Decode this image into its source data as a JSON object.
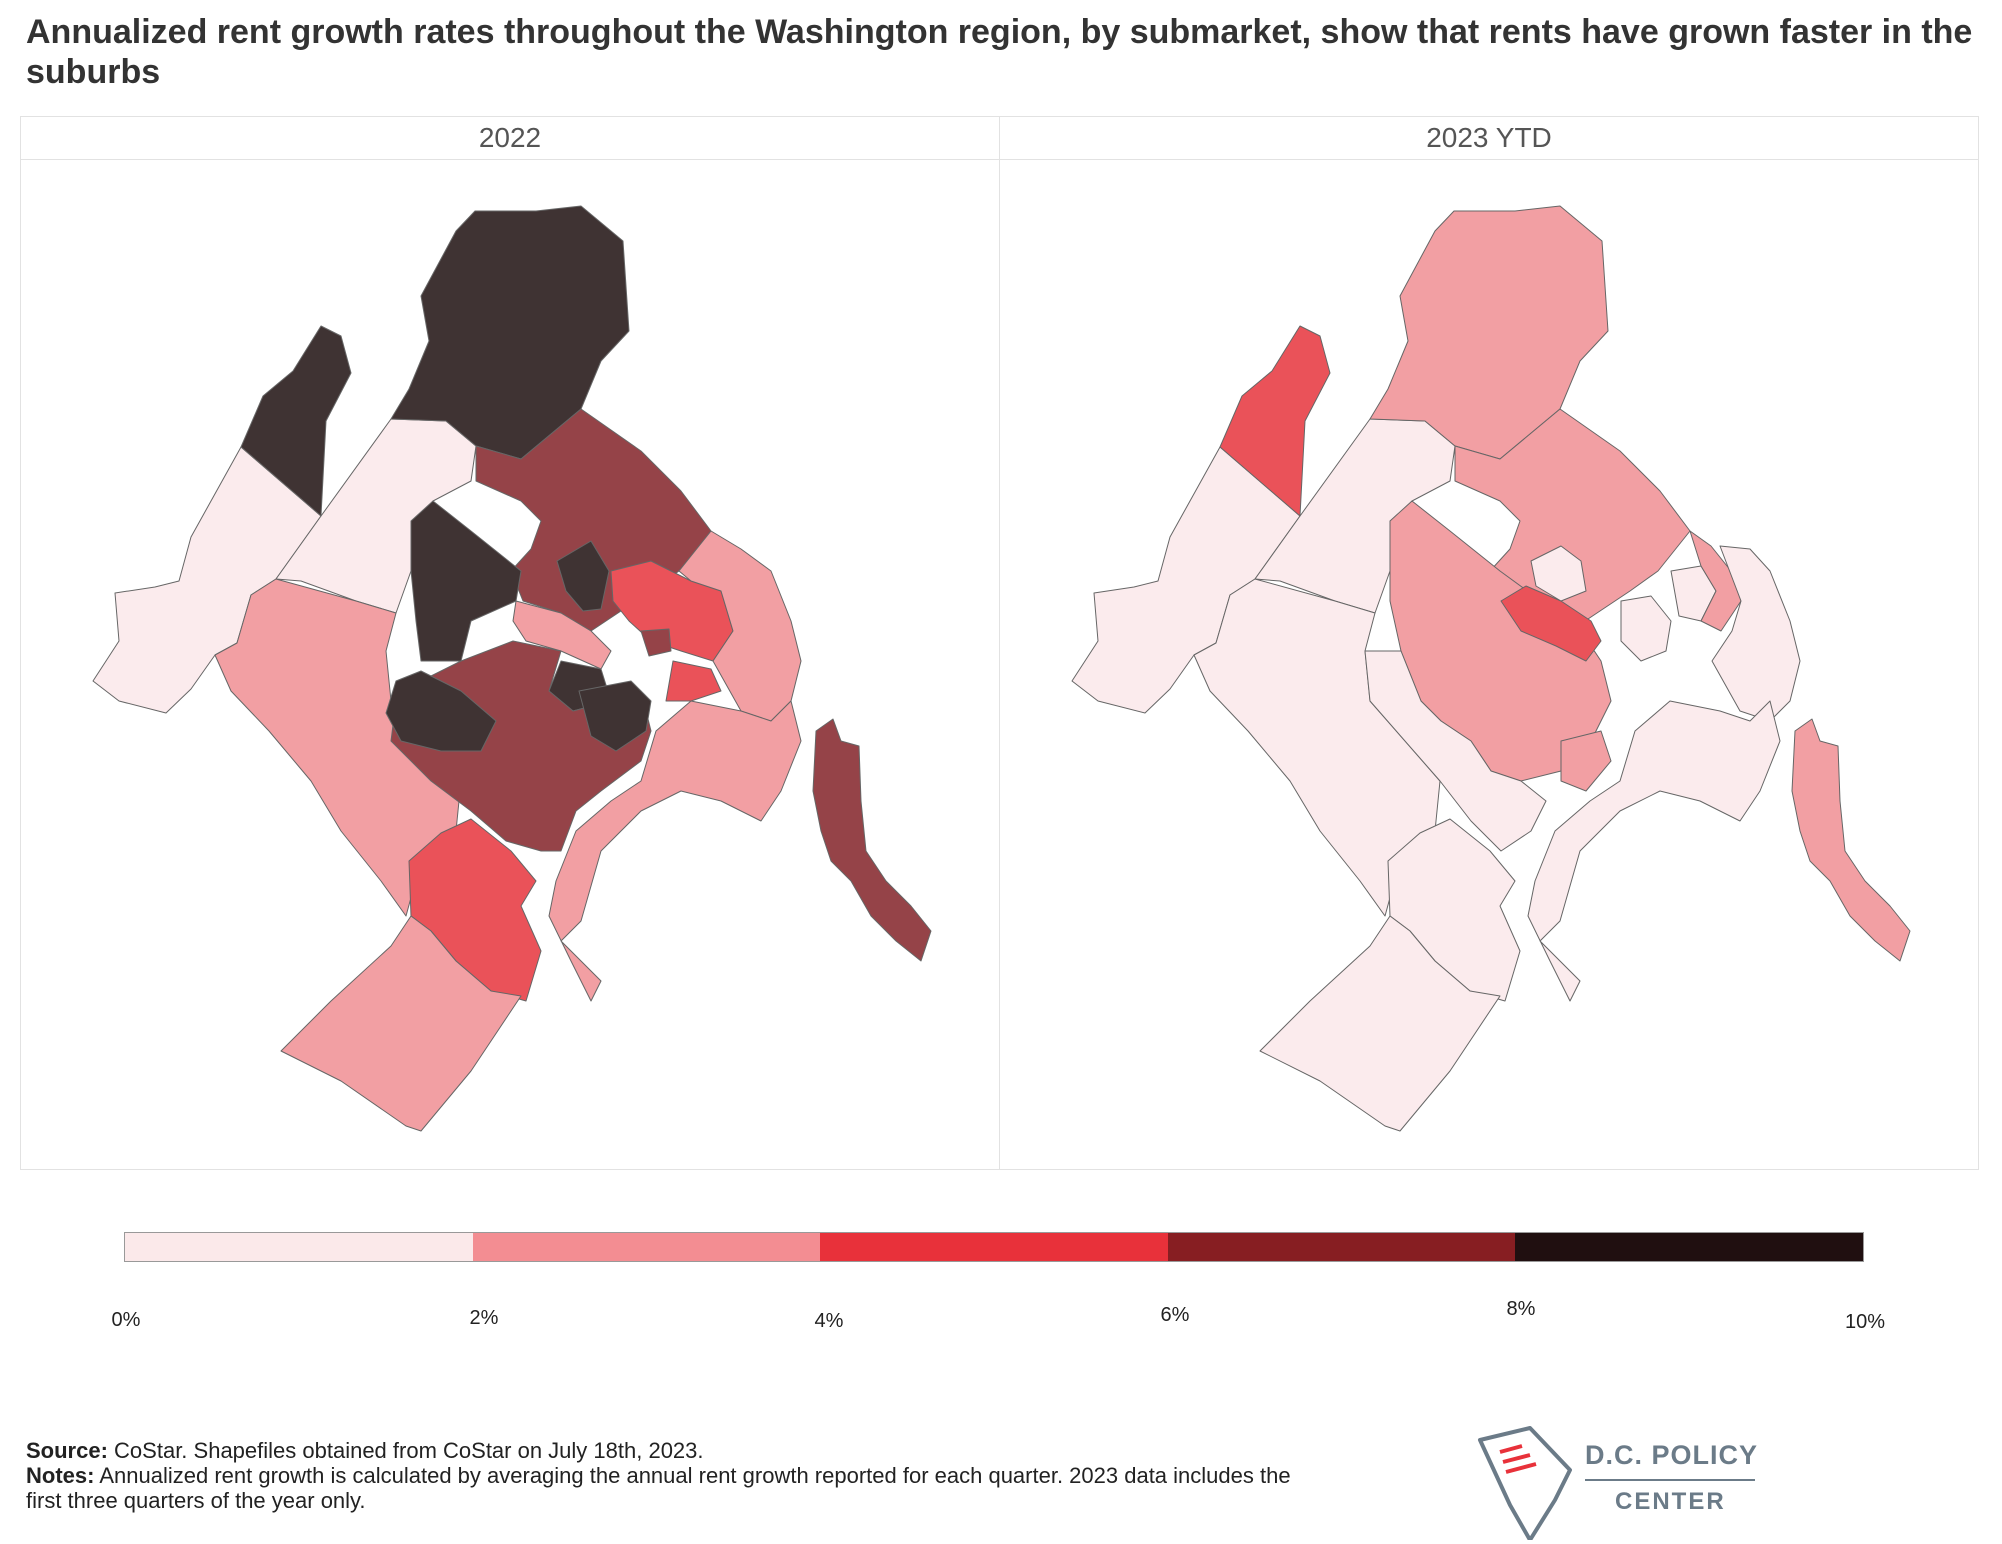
{
  "title": "Annualized rent growth rates throughout the Washington region, by submarket, show that rents have grown faster in the suburbs",
  "panels": [
    {
      "label": "2022"
    },
    {
      "label": "2023 YTD"
    }
  ],
  "legend": {
    "ticks": [
      "0%",
      "2%",
      "4%",
      "6%",
      "8%",
      "10%"
    ],
    "bins": [
      {
        "range": "0%–2%",
        "color": "#fbe9ea"
      },
      {
        "range": "2%–4%",
        "color": "#f38d92"
      },
      {
        "range": "4%–6%",
        "color": "#e8313a"
      },
      {
        "range": "6%–8%",
        "color": "#871e22"
      },
      {
        "range": "8%–10%",
        "color": "#200f10"
      }
    ]
  },
  "map_colors": {
    "very_light": "#fbebed",
    "light": "#f29fa3",
    "medium": "#ea5259",
    "dark": "#954348",
    "darkest": "#3f3333"
  },
  "footer": {
    "source_label": "Source:",
    "source_text": "CoStar. Shapefiles obtained from CoStar on July 18th, 2023.",
    "notes_label": "Notes:",
    "notes_text": "Annualized rent growth is calculated by averaging the annual rent growth reported for each quarter. 2023 data includes the first three quarters of the year only."
  },
  "logo": {
    "line1": "D.C. POLICY",
    "line2": "CENTER"
  }
}
